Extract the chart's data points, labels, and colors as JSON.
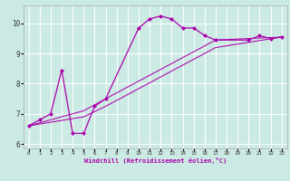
{
  "title": "",
  "xlabel": "Windchill (Refroidissement éolien,°C)",
  "ylabel": "",
  "bg_color": "#cceae4",
  "line_color": "#aa00aa",
  "xlim": [
    -0.5,
    23.5
  ],
  "ylim": [
    5.85,
    10.6
  ],
  "xticks": [
    0,
    1,
    2,
    3,
    4,
    5,
    6,
    7,
    8,
    9,
    10,
    11,
    12,
    13,
    14,
    15,
    16,
    17,
    18,
    19,
    20,
    21,
    22,
    23
  ],
  "yticks": [
    6,
    7,
    8,
    9,
    10
  ],
  "grid_color": "#ffffff",
  "series": [
    {
      "x": [
        0,
        1,
        2,
        3,
        4,
        5,
        6,
        7,
        10,
        11,
        12,
        13,
        14,
        15,
        16,
        17,
        20,
        21,
        22,
        23
      ],
      "y": [
        6.6,
        6.8,
        7.0,
        8.45,
        6.35,
        6.35,
        7.25,
        7.5,
        9.85,
        10.15,
        10.25,
        10.15,
        9.85,
        9.85,
        9.6,
        9.45,
        9.45,
        9.6,
        9.5,
        9.55
      ],
      "marker": "D",
      "markersize": 2.0,
      "linewidth": 0.9
    },
    {
      "x": [
        0,
        5,
        7,
        17,
        23
      ],
      "y": [
        6.6,
        7.1,
        7.5,
        9.45,
        9.55
      ],
      "marker": null,
      "markersize": 0,
      "linewidth": 0.75
    },
    {
      "x": [
        0,
        5,
        7,
        17,
        23
      ],
      "y": [
        6.6,
        6.9,
        7.25,
        9.2,
        9.55
      ],
      "marker": null,
      "markersize": 0,
      "linewidth": 0.75
    }
  ]
}
